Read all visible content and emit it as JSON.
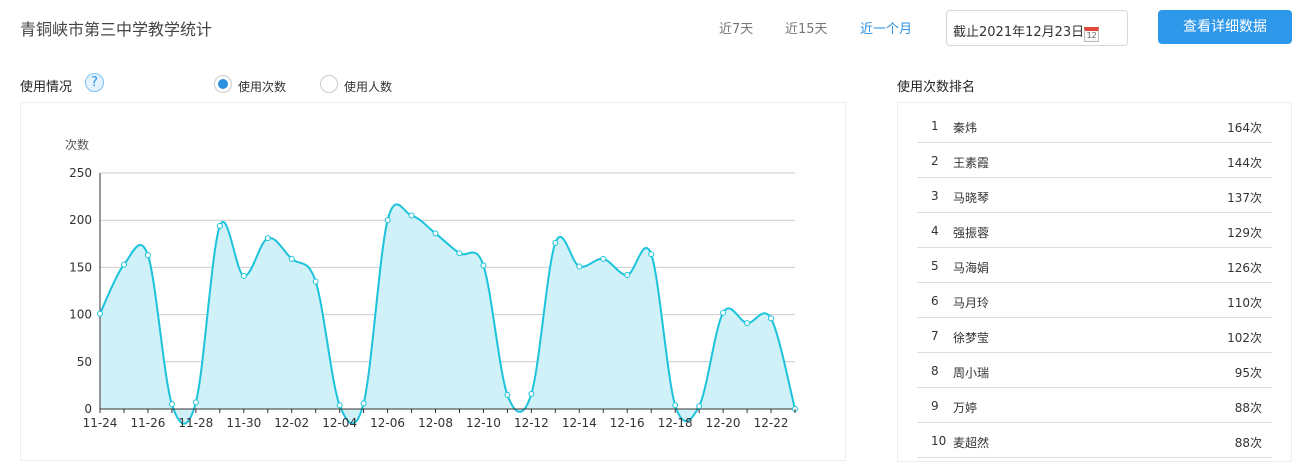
{
  "header": {
    "title": "青铜峡市第三中学教学统计",
    "ranges": [
      "近7天",
      "近15天",
      "近一个月"
    ],
    "active_range": "近一个月",
    "date": "截止2021年12月23日",
    "calendar_day": "12",
    "detail_button": "查看详细数据"
  },
  "usage": {
    "title": "使用情况",
    "help": "?",
    "radios": [
      {
        "label": "使用次数",
        "checked": true
      },
      {
        "label": "使用人数",
        "checked": false
      }
    ]
  },
  "ranking": {
    "title": "使用次数排名",
    "items": [
      {
        "rank": "1",
        "name": "秦炜",
        "count": "164次"
      },
      {
        "rank": "2",
        "name": "王素霞",
        "count": "144次"
      },
      {
        "rank": "3",
        "name": "马晓琴",
        "count": "137次"
      },
      {
        "rank": "4",
        "name": "强振蓉",
        "count": "129次"
      },
      {
        "rank": "5",
        "name": "马海娟",
        "count": "126次"
      },
      {
        "rank": "6",
        "name": "马月玲",
        "count": "110次"
      },
      {
        "rank": "7",
        "name": "徐梦莹",
        "count": "102次"
      },
      {
        "rank": "8",
        "name": "周小瑞",
        "count": "95次"
      },
      {
        "rank": "9",
        "name": "万婷",
        "count": "88次"
      },
      {
        "rank": "10",
        "name": "麦超然",
        "count": "88次"
      }
    ]
  },
  "chart_data": {
    "type": "area",
    "ylabel": "次数",
    "ylim": [
      0,
      250
    ],
    "yticks": [
      0,
      50,
      100,
      150,
      200,
      250
    ],
    "grid": true,
    "color": "#1cc3db",
    "fill": "#d0f1f7",
    "x": [
      "11-24",
      "11-25",
      "11-26",
      "11-27",
      "11-28",
      "11-29",
      "11-30",
      "12-01",
      "12-02",
      "12-03",
      "12-04",
      "12-05",
      "12-06",
      "12-07",
      "12-08",
      "12-09",
      "12-10",
      "12-11",
      "12-12",
      "12-13",
      "12-14",
      "12-15",
      "12-16",
      "12-17",
      "12-18",
      "12-19",
      "12-20",
      "12-21",
      "12-22",
      "12-23"
    ],
    "xtick_labels": [
      "11-24",
      "11-26",
      "11-28",
      "11-30",
      "12-02",
      "12-04",
      "12-06",
      "12-08",
      "12-10",
      "12-12",
      "12-14",
      "12-16",
      "12-18",
      "12-20",
      "12-22"
    ],
    "values": [
      101,
      153,
      163,
      5,
      7,
      194,
      141,
      181,
      159,
      135,
      4,
      6,
      200,
      205,
      186,
      165,
      152,
      15,
      16,
      176,
      151,
      159,
      142,
      164,
      4,
      3,
      102,
      91,
      96,
      0
    ]
  }
}
